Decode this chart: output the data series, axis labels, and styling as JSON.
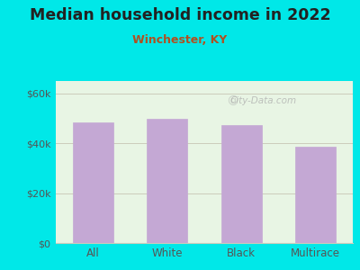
{
  "title": "Median household income in 2022",
  "subtitle": "Winchester, KY",
  "categories": [
    "All",
    "White",
    "Black",
    "Multirace"
  ],
  "values": [
    48500,
    49800,
    47200,
    38500
  ],
  "bar_color": "#c4a8d4",
  "background_color": "#00e8e8",
  "plot_bg_color": "#e8f5e4",
  "title_color": "#222222",
  "subtitle_color": "#b05020",
  "tick_label_color": "#555555",
  "ytick_labels": [
    "$0",
    "$20k",
    "$40k",
    "$60k"
  ],
  "ytick_values": [
    0,
    20000,
    40000,
    60000
  ],
  "ylim": [
    0,
    65000
  ],
  "grid_color": "#ccccbb",
  "watermark": "City-Data.com"
}
